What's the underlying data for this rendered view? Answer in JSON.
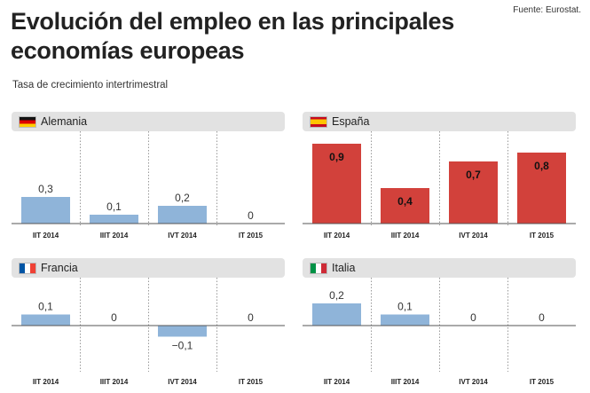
{
  "title": "Evolución del empleo en las principales economías europeas",
  "source": "Fuente: Eurostat.",
  "subtitle": "Tasa de crecimiento intertrimestral",
  "colors": {
    "positive_bar": "#8fb4d9",
    "spain_bar": "#d2413b",
    "axis": "#555555",
    "grid": "#999999"
  },
  "chart_data": [
    {
      "type": "bar",
      "country": "Alemania",
      "flag_icon": "germany-flag-icon",
      "categories": [
        "IIT 2014",
        "IIIT 2014",
        "IVT 2014",
        "IT 2015"
      ],
      "values": [
        0.3,
        0.1,
        0.2,
        0
      ],
      "labels": [
        "0,3",
        "0,1",
        "0,2",
        "0"
      ],
      "ylim": [
        0,
        1.0
      ],
      "bar_color": "#8fb4d9",
      "label_style": "above"
    },
    {
      "type": "bar",
      "country": "España",
      "flag_icon": "spain-flag-icon",
      "categories": [
        "IIT 2014",
        "IIIT 2014",
        "IVT 2014",
        "IT 2015"
      ],
      "values": [
        0.9,
        0.4,
        0.7,
        0.8
      ],
      "labels": [
        "0,9",
        "0,4",
        "0,7",
        "0,8"
      ],
      "ylim": [
        0,
        1.0
      ],
      "bar_color": "#d2413b",
      "label_style": "inside"
    },
    {
      "type": "bar",
      "country": "Francia",
      "flag_icon": "france-flag-icon",
      "categories": [
        "IIT 2014",
        "IIIT 2014",
        "IVT 2014",
        "IT 2015"
      ],
      "values": [
        0.1,
        0,
        -0.1,
        0
      ],
      "labels": [
        "0,1",
        "0",
        "−0,1",
        "0"
      ],
      "ylim": [
        -0.4,
        0.4
      ],
      "bar_color": "#8fb4d9",
      "label_style": "above"
    },
    {
      "type": "bar",
      "country": "Italia",
      "flag_icon": "italy-flag-icon",
      "categories": [
        "IIT 2014",
        "IIIT 2014",
        "IVT 2014",
        "IT 2015"
      ],
      "values": [
        0.2,
        0.1,
        0,
        0
      ],
      "labels": [
        "0,2",
        "0,1",
        "0",
        "0"
      ],
      "ylim": [
        -0.4,
        0.4
      ],
      "bar_color": "#8fb4d9",
      "label_style": "above"
    }
  ]
}
